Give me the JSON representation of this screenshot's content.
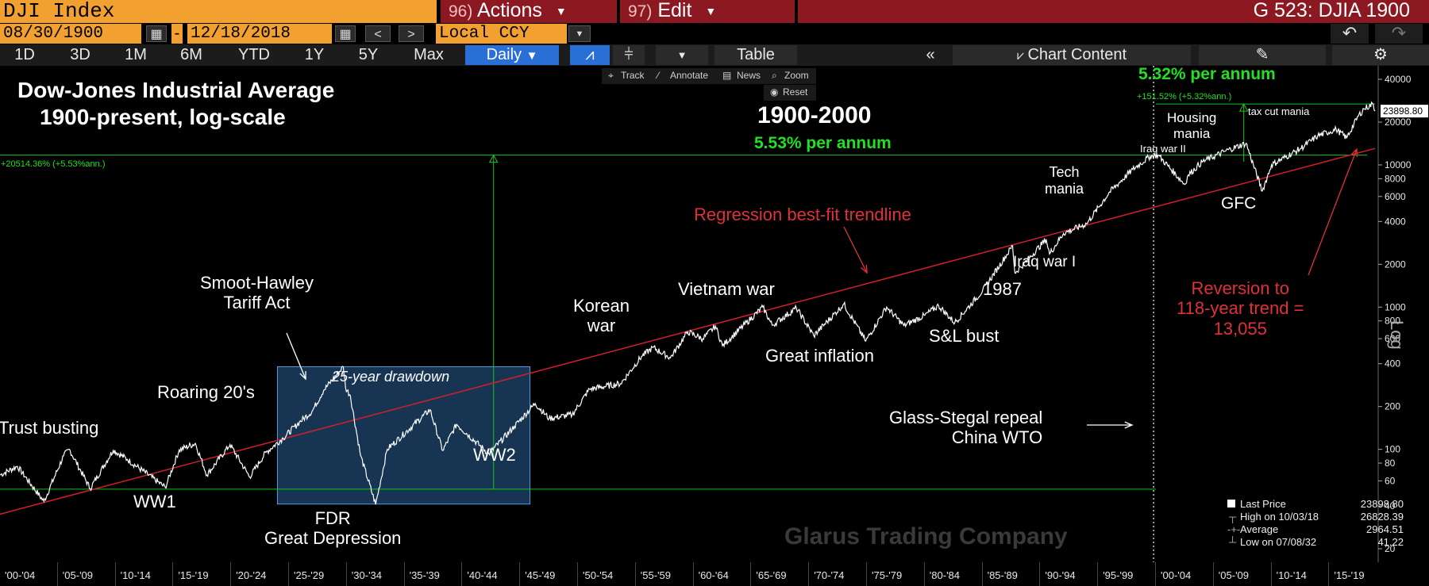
{
  "header": {
    "ticker": "DJI Index",
    "actions_num": "96)",
    "actions_label": "Actions",
    "edit_num": "97)",
    "edit_label": "Edit",
    "page_code": "G 523: DJIA 1900"
  },
  "dates": {
    "start": "08/30/1900",
    "end": "12/18/2018",
    "currency": "Local CCY"
  },
  "toolbar": {
    "periods": [
      "1D",
      "3D",
      "1M",
      "6M",
      "YTD",
      "1Y",
      "5Y",
      "Max"
    ],
    "frequency": "Daily",
    "table_label": "Table",
    "chart_content_label": "Chart Content"
  },
  "chart_tools": {
    "track": "Track",
    "annotate": "Annotate",
    "news": "News",
    "zoom": "Zoom",
    "reset": "Reset"
  },
  "colors": {
    "accent_orange": "#f2a030",
    "menu_red": "#8c1822",
    "selected_blue": "#2a6fd6",
    "price_line": "#ffffff",
    "trend_line": "#d0202a",
    "band_line": "#19c41e",
    "box_fill": "#2a5f96"
  },
  "chart_data": {
    "type": "line",
    "title": "Dow-Jones Industrial Average",
    "subtitle": "1900-present, log-scale",
    "y_scale": "log",
    "ylim": [
      18,
      52000
    ],
    "xlim": [
      1900.0,
      2019.5
    ],
    "y_ticks": [
      20,
      40,
      60,
      80,
      100,
      200,
      400,
      600,
      800,
      1000,
      2000,
      4000,
      6000,
      8000,
      10000,
      20000,
      40000
    ],
    "y_axis_label": "Log",
    "x_tick_labels": [
      "'00-'04",
      "'05-'09",
      "'10-'14",
      "'15-'19",
      "'20-'24",
      "'25-'29",
      "'30-'34",
      "'35-'39",
      "'40-'44",
      "'45-'49",
      "'50-'54",
      "'55-'59",
      "'60-'64",
      "'65-'69",
      "'70-'74",
      "'75-'79",
      "'80-'84",
      "'85-'89",
      "'90-'94",
      "'95-'99",
      "'00-'04",
      "'05-'09",
      "'10-'14",
      "'15-'19"
    ],
    "x_tick_starts": [
      1900,
      1905,
      1910,
      1915,
      1920,
      1925,
      1930,
      1935,
      1940,
      1945,
      1950,
      1955,
      1960,
      1965,
      1970,
      1975,
      1980,
      1985,
      1990,
      1995,
      2000,
      2005,
      2010,
      2015
    ],
    "series": [
      {
        "name": "DJIA",
        "x": [
          1900.0,
          1901.5,
          1903.8,
          1905.5,
          1906.0,
          1907.8,
          1909.8,
          1911.0,
          1914.3,
          1915.5,
          1916.9,
          1917.9,
          1919.9,
          1921.6,
          1923.0,
          1924.5,
          1925.9,
          1927.0,
          1928.0,
          1929.7,
          1929.9,
          1930.3,
          1931.2,
          1932.5,
          1933.5,
          1937.2,
          1938.3,
          1939.5,
          1942.3,
          1944.5,
          1946.3,
          1947.5,
          1949.5,
          1951.0,
          1953.7,
          1955.5,
          1956.5,
          1958.0,
          1959.5,
          1960.8,
          1961.9,
          1962.5,
          1966.0,
          1966.8,
          1968.9,
          1970.4,
          1973.0,
          1974.9,
          1976.7,
          1978.2,
          1980.0,
          1981.2,
          1982.6,
          1985.0,
          1987.6,
          1987.8,
          1988.9,
          1990.5,
          1990.8,
          1992.0,
          1994.0,
          1996.0,
          1998.0,
          1999.5,
          2000.2,
          2002.5,
          2002.8,
          2004.0,
          2006.0,
          2007.8,
          2009.2,
          2010.0,
          2012.5,
          2014.0,
          2015.6,
          2016.5,
          2017.5,
          2018.0,
          2018.8,
          2018.96
        ],
        "values": [
          66,
          76,
          43,
          90,
          100,
          53,
          99,
          85,
          54,
          99,
          110,
          66,
          108,
          64,
          95,
          120,
          155,
          185,
          260,
          381,
          270,
          240,
          90,
          41,
          100,
          190,
          98,
          150,
          93,
          145,
          210,
          165,
          175,
          265,
          290,
          450,
          520,
          440,
          670,
          600,
          735,
          535,
          1000,
          745,
          985,
          630,
          1050,
          577,
          1000,
          742,
          875,
          1024,
          777,
          1300,
          2700,
          1740,
          2150,
          2999,
          2365,
          3300,
          3850,
          6448,
          9300,
          11500,
          11720,
          7286,
          8500,
          10500,
          12500,
          14200,
          6547,
          10000,
          13000,
          16000,
          17800,
          15500,
          22000,
          24800,
          26828,
          23898.8
        ]
      },
      {
        "name": "Regression best-fit trendline",
        "x": [
          1900.0,
          2018.96
        ],
        "values": [
          35,
          13055
        ]
      }
    ],
    "last_value_label": "23898.80",
    "measures": [
      {
        "label": "+20514.36% (+5.53%ann.)",
        "from_year": 1900,
        "to_year": 2000
      },
      {
        "label": "+151.52% (+5.32%ann.)",
        "from_year": 2000,
        "to_year": 2018.96
      }
    ],
    "headline_1900_2000": "1900-2000",
    "rate_1900_2000": "5.53% per annum",
    "rate_2000_present": "5.32% per annum",
    "box_label": "25-year drawdown",
    "watermark": "Glarus Trading Company",
    "annotations": {
      "trust_busting": "Trust busting",
      "ww1": "WW1",
      "roaring_20s": "Roaring 20's",
      "smoot_hawley": "Smoot-Hawley\nTariff Act",
      "fdr": "FDR\nGreat Depression",
      "ww2": "WW2",
      "korean_war": "Korean\nwar",
      "vietnam_war": "Vietnam war",
      "great_inflation": "Great inflation",
      "regression": "Regression best-fit trendline",
      "sl_bust": "S&L bust",
      "crash_1987": "1987",
      "iraq_war_1": "Iraq war I",
      "tech_mania": "Tech\nmania",
      "glass_stegal": "Glass-Stegal repeal\nChina WTO",
      "iraq_war_2": "Iraq war II",
      "housing_mania": "Housing\nmania",
      "tax_cut_mania": "tax cut mania",
      "gfc": "GFC",
      "reversion": "Reversion to\n118-year trend =\n13,055"
    },
    "legend": {
      "last_price_label": "Last Price",
      "last_price": "23898.80",
      "high_label": "High on 10/03/18",
      "high": "26828.39",
      "average_label": "Average",
      "average": "2964.51",
      "low_label": "Low on 07/08/32",
      "low": "41.22"
    }
  }
}
